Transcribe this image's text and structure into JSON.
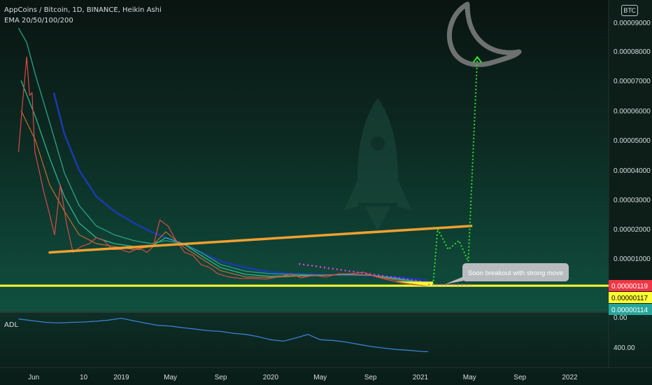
{
  "header": {
    "title": "AppCoins / Bitcoin, 1D, BINANCE, Heikin Ashi",
    "indicator": "EMA 20/50/100/200",
    "currency_button": "BTC"
  },
  "annotation": {
    "text": "Soon breakout with strong move"
  },
  "colors": {
    "background_top": "#0b1512",
    "background_bottom": "#0f4a3a",
    "price_line": "#d84a4a",
    "ema20": "#c07030",
    "ema50": "#2fb58f",
    "ema100": "#2a9a80",
    "ema200": "#1a3aa8",
    "trendline": "#f0a030",
    "support": "#ffff30",
    "projection": "#30e030",
    "resistance_dots": "#e040e0",
    "adl_line": "#3a80d0",
    "callout_bg": "#b9bcbe",
    "label_red": "#f23645",
    "label_yellow": "#ffff33",
    "label_teal": "#26a69a"
  },
  "chart_data": [
    {
      "type": "line",
      "title": "AppCoins / Bitcoin, 1D, BINANCE, Heikin Ashi",
      "y_axis": {
        "ticks": [
          "0.00009000",
          "0.00008000",
          "0.00007000",
          "0.00006000",
          "0.00005000",
          "0.00004000",
          "0.00003000",
          "0.00002000",
          "0.00001000"
        ],
        "ylim": [
          0,
          9.2e-05
        ]
      },
      "x_axis": {
        "ticks": [
          "Jun",
          "10",
          "2019",
          "May",
          "Sep",
          "2020",
          "May",
          "Sep",
          "2021",
          "May",
          "Sep",
          "2022"
        ]
      },
      "price_labels": [
        {
          "value": "0.00000119",
          "color": "red"
        },
        {
          "value": "0.00000117",
          "color": "yellow"
        },
        {
          "value": "0.00000114",
          "color": "teal"
        }
      ],
      "series": [
        {
          "name": "Price",
          "x": [
            "2018-04-25",
            "2018-05-05",
            "2018-05-15",
            "2018-05-22",
            "2018-05-28",
            "2018-06-04",
            "2018-06-14",
            "2018-06-25",
            "2018-07-08",
            "2018-07-22",
            "2018-08-05",
            "2018-08-20",
            "2018-09-05",
            "2018-09-25",
            "2018-10-15",
            "2018-11-01",
            "2018-11-20",
            "2018-12-10",
            "2019-01-01",
            "2019-01-20",
            "2019-02-05",
            "2019-02-20",
            "2019-03-05",
            "2019-03-20",
            "2019-04-05",
            "2019-04-25",
            "2019-05-15",
            "2019-06-05",
            "2019-06-25",
            "2019-07-15",
            "2019-08-05",
            "2019-08-25",
            "2019-09-20",
            "2019-10-20",
            "2019-11-20",
            "2019-12-20",
            "2020-01-20",
            "2020-02-20",
            "2020-03-15",
            "2020-04-15",
            "2020-05-15",
            "2020-06-15",
            "2020-07-15",
            "2020-08-15",
            "2020-09-15",
            "2020-10-15",
            "2020-11-15",
            "2020-12-15",
            "2021-01-10",
            "2021-01-20"
          ],
          "values": [
            4.6e-05,
            6.3e-05,
            7.8e-05,
            6.5e-05,
            6.6e-05,
            4.6e-05,
            4e-05,
            3.3e-05,
            2.6e-05,
            1.8e-05,
            3.5e-05,
            2.2e-05,
            1.2e-05,
            1.4e-05,
            1.5e-05,
            1.7e-05,
            1.6e-05,
            1.3e-05,
            1.3e-05,
            1.2e-05,
            1.3e-05,
            1.3e-05,
            1.2e-05,
            1.4e-05,
            2.3e-05,
            2.1e-05,
            1.6e-05,
            1.2e-05,
            1.1e-05,
            8e-06,
            7e-06,
            5e-06,
            4e-06,
            3.5e-06,
            3.5e-06,
            3.3e-06,
            4e-06,
            5e-06,
            3.7e-06,
            4.5e-06,
            4e-06,
            5e-06,
            5e-06,
            5.5e-06,
            4e-06,
            3e-06,
            2e-06,
            1.5e-06,
            1.2e-06,
            1.19e-06
          ]
        },
        {
          "name": "EMA 20",
          "x": [
            "2018-05-01",
            "2018-06-05",
            "2018-07-10",
            "2018-08-15",
            "2018-09-20",
            "2018-11-01",
            "2018-12-15",
            "2019-02-01",
            "2019-03-15",
            "2019-04-20",
            "2019-06-01",
            "2019-07-15",
            "2019-09-01",
            "2019-11-01",
            "2020-01-01",
            "2020-03-01",
            "2020-05-01",
            "2020-07-01",
            "2020-09-01",
            "2020-11-01",
            "2021-01-01",
            "2021-01-20"
          ],
          "values": [
            6e-05,
            5e-05,
            3.5e-05,
            2.6e-05,
            1.8e-05,
            1.5e-05,
            1.4e-05,
            1.3e-05,
            1.4e-05,
            1.9e-05,
            1.4e-05,
            1e-05,
            6e-06,
            4e-06,
            3.8e-06,
            4.2e-06,
            4.4e-06,
            5e-06,
            4.5e-06,
            3e-06,
            1.6e-06,
            1.3e-06
          ]
        },
        {
          "name": "EMA 50",
          "x": [
            "2018-05-01",
            "2018-06-05",
            "2018-07-10",
            "2018-08-15",
            "2018-09-20",
            "2018-11-01",
            "2018-12-15",
            "2019-02-01",
            "2019-03-15",
            "2019-04-20",
            "2019-06-01",
            "2019-07-15",
            "2019-09-01",
            "2019-11-01",
            "2020-01-01",
            "2020-03-01",
            "2020-05-01",
            "2020-07-01",
            "2020-09-01",
            "2020-11-01",
            "2021-01-01",
            "2021-01-20"
          ],
          "values": [
            7e-05,
            5.8e-05,
            4.4e-05,
            3.1e-05,
            2.2e-05,
            1.7e-05,
            1.5e-05,
            1.4e-05,
            1.4e-05,
            1.7e-05,
            1.5e-05,
            1.1e-05,
            7e-06,
            4.8e-06,
            4.2e-06,
            4.4e-06,
            4.5e-06,
            4.8e-06,
            4.6e-06,
            3.4e-06,
            2e-06,
            1.6e-06
          ]
        },
        {
          "name": "EMA 100",
          "x": [
            "2018-04-25",
            "2018-05-15",
            "2018-06-05",
            "2018-07-10",
            "2018-08-15",
            "2018-09-20",
            "2018-11-01",
            "2018-12-15",
            "2019-02-01",
            "2019-03-15",
            "2019-04-20",
            "2019-06-01",
            "2019-07-15",
            "2019-09-01",
            "2019-11-01",
            "2020-01-01",
            "2020-03-01",
            "2020-05-01",
            "2020-07-01",
            "2020-09-01",
            "2020-11-01",
            "2021-01-01",
            "2021-01-20"
          ],
          "values": [
            8.8e-05,
            8.3e-05,
            7.2e-05,
            5.6e-05,
            3.9e-05,
            2.8e-05,
            2.1e-05,
            1.8e-05,
            1.6e-05,
            1.5e-05,
            1.6e-05,
            1.5e-05,
            1.2e-05,
            8e-06,
            5.8e-06,
            5e-06,
            4.8e-06,
            4.6e-06,
            4.7e-06,
            4.5e-06,
            3.6e-06,
            2.4e-06,
            2e-06
          ]
        },
        {
          "name": "EMA 200",
          "x": [
            "2018-07-20",
            "2018-08-15",
            "2018-09-20",
            "2018-11-01",
            "2018-12-15",
            "2019-02-01",
            "2019-03-15",
            "2019-04-20",
            "2019-06-01",
            "2019-07-15",
            "2019-09-01",
            "2019-11-01",
            "2020-01-01",
            "2020-03-01",
            "2020-05-01",
            "2020-07-01",
            "2020-09-01",
            "2020-11-01",
            "2021-01-01",
            "2021-01-20"
          ],
          "values": [
            6.6e-05,
            5.2e-05,
            4e-05,
            3.1e-05,
            2.6e-05,
            2.2e-05,
            1.9e-05,
            1.7e-05,
            1.5e-05,
            1.2e-05,
            9e-06,
            7e-06,
            5.5e-06,
            5e-06,
            4.8e-06,
            4.6e-06,
            4.4e-06,
            4e-06,
            3.2e-06,
            2.8e-06
          ]
        }
      ],
      "drawings": {
        "trendline": {
          "x": [
            "2018-07-10",
            "2021-05-05"
          ],
          "y": [
            1.2e-05,
            2.1e-05
          ]
        },
        "support_line": {
          "y": 1.17e-06
        },
        "resistance_dots": {
          "x": [
            "2020-03-10",
            "2021-01-05"
          ],
          "y": [
            8.2e-06,
            2.5e-06
          ]
        },
        "breakout_triangle": {
          "x": [
            "2020-11-01",
            "2021-02-01",
            "2021-02-01"
          ],
          "y": [
            2.5e-06,
            2.5e-06,
            9e-07
          ]
        },
        "projection_path": {
          "x": [
            "2021-02-01",
            "2021-02-12",
            "2021-03-10",
            "2021-04-05",
            "2021-04-28",
            "2021-05-20"
          ],
          "y": [
            1.5e-06,
            2e-05,
            1.3e-05,
            1.6e-05,
            9e-06,
            7.8e-05
          ]
        },
        "projection_baseline": {
          "x": [
            "2021-01-20",
            "2021-05-05"
          ],
          "y": [
            1.5e-06,
            1.5e-06
          ]
        }
      }
    },
    {
      "type": "line",
      "title": "ADL",
      "y_axis": {
        "ticks": [
          "0.00",
          "400.00"
        ],
        "ylim": [
          525,
          -25
        ]
      },
      "series": [
        {
          "name": "ADL",
          "x": [
            "2018-04-25",
            "2018-06-01",
            "2018-07-01",
            "2018-08-01",
            "2018-09-01",
            "2018-10-01",
            "2018-11-01",
            "2018-12-01",
            "2019-01-01",
            "2019-02-01",
            "2019-03-01",
            "2019-04-01",
            "2019-05-01",
            "2019-06-01",
            "2019-07-01",
            "2019-08-01",
            "2019-09-01",
            "2019-10-01",
            "2019-11-01",
            "2019-12-01",
            "2020-01-01",
            "2020-02-01",
            "2020-03-01",
            "2020-04-01",
            "2020-05-01",
            "2020-06-01",
            "2020-07-01",
            "2020-08-01",
            "2020-09-01",
            "2020-10-01",
            "2020-11-01",
            "2020-12-01",
            "2021-01-01",
            "2021-01-20"
          ],
          "values": [
            25,
            50,
            70,
            78,
            70,
            65,
            55,
            40,
            15,
            50,
            80,
            110,
            120,
            140,
            160,
            180,
            190,
            215,
            230,
            260,
            300,
            320,
            280,
            230,
            300,
            310,
            330,
            360,
            390,
            410,
            430,
            440,
            455,
            460
          ]
        }
      ]
    }
  ]
}
